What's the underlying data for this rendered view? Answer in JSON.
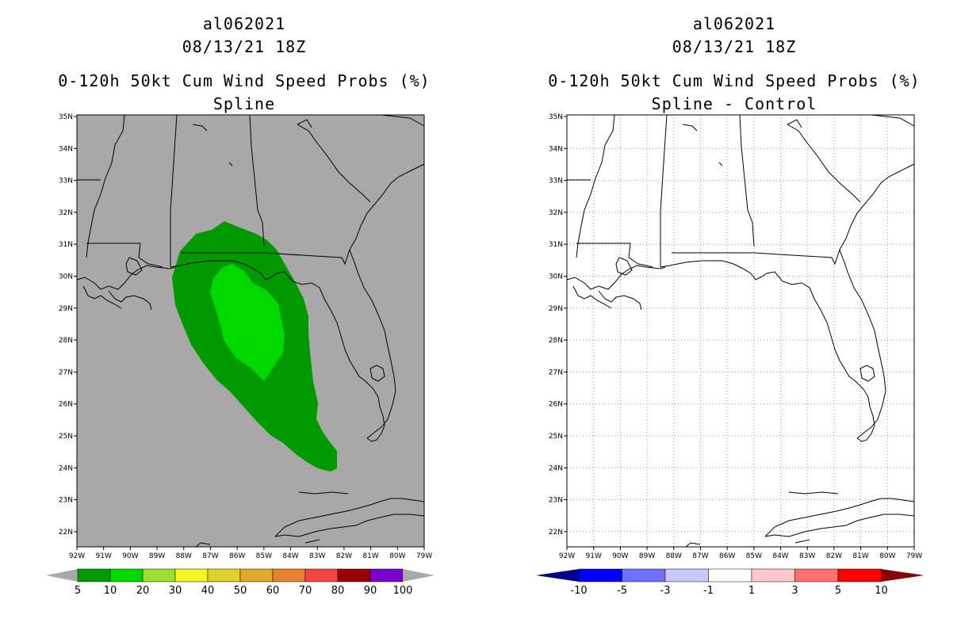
{
  "left_panel": {
    "title_lines": [
      "al062021",
      "08/13/21 18Z",
      "0-120h 50kt Cum Wind Speed Probs (%)",
      "Spline"
    ],
    "colorbar": {
      "labels": [
        "5",
        "10",
        "20",
        "30",
        "40",
        "50",
        "60",
        "70",
        "80",
        "90",
        "100"
      ],
      "colors": [
        "#009a00",
        "#00d900",
        "#99e033",
        "#f5f522",
        "#dfd22e",
        "#dfaa2e",
        "#e8822e",
        "#f54444",
        "#9a0000",
        "#7a00cc"
      ],
      "end_color": "#a8a8a8"
    },
    "background_color": "#a8a8a8"
  },
  "right_panel": {
    "title_lines": [
      "al062021",
      "08/13/21 18Z",
      "0-120h 50kt Cum Wind Speed Probs (%)",
      "Spline - Control"
    ],
    "colorbar": {
      "labels": [
        "-10",
        "-5",
        "-3",
        "-1",
        "1",
        "3",
        "5",
        "10"
      ],
      "colors": [
        "#0000ff",
        "#7070ff",
        "#c8c8ff",
        "#ffffff",
        "#ffc8c8",
        "#ff7070",
        "#ff0000"
      ],
      "end_left_color": "#00008b",
      "end_right_color": "#8b0000"
    },
    "background_color": "#ffffff"
  },
  "map": {
    "lon_labels": [
      "92W",
      "91W",
      "90W",
      "89W",
      "88W",
      "87W",
      "86W",
      "85W",
      "84W",
      "83W",
      "82W",
      "81W",
      "80W",
      "79W"
    ],
    "lat_labels": [
      "35N",
      "34N",
      "33N",
      "32N",
      "31N",
      "30N",
      "29N",
      "28N",
      "27N",
      "26N",
      "25N",
      "24N",
      "23N",
      "22N"
    ]
  },
  "probability_contours": [
    {
      "threshold_percent": 5,
      "color": "#009a00"
    },
    {
      "threshold_percent": 10,
      "color": "#00d900"
    }
  ]
}
